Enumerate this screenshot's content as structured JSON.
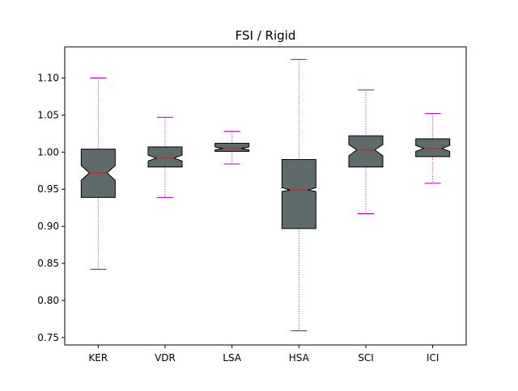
{
  "chart_data": {
    "type": "boxplot",
    "title": "FSI / Rigid",
    "xlabel": "",
    "ylabel": "",
    "ylim": [
      0.74,
      1.142
    ],
    "yticks": [
      "0.75",
      "0.80",
      "0.85",
      "0.90",
      "0.95",
      "1.00",
      "1.05",
      "1.10"
    ],
    "notched": true,
    "grid": false,
    "colors": {
      "box_fill": "#5f6b6a",
      "box_edge": "#000000",
      "median": "#dd2222",
      "whisker": "#aa00aa"
    },
    "categories": [
      "KER",
      "VDR",
      "LSA",
      "HSA",
      "SCI",
      "ICI"
    ],
    "boxes": [
      {
        "label": "KER",
        "whisker_low": 0.842,
        "q1": 0.939,
        "median": 0.972,
        "q3": 1.004,
        "whisker_high": 1.1,
        "notch_low": 0.962,
        "notch_high": 0.982
      },
      {
        "label": "VDR",
        "whisker_low": 0.939,
        "q1": 0.98,
        "median": 0.992,
        "q3": 1.007,
        "whisker_high": 1.047,
        "notch_low": 0.988,
        "notch_high": 0.996
      },
      {
        "label": "LSA",
        "whisker_low": 0.984,
        "q1": 1.001,
        "median": 1.005,
        "q3": 1.012,
        "whisker_high": 1.028,
        "notch_low": 1.003,
        "notch_high": 1.007
      },
      {
        "label": "HSA",
        "whisker_low": 0.759,
        "q1": 0.897,
        "median": 0.949,
        "q3": 0.99,
        "whisker_high": 1.125,
        "notch_low": 0.947,
        "notch_high": 0.952
      },
      {
        "label": "SCI",
        "whisker_low": 0.917,
        "q1": 0.98,
        "median": 1.003,
        "q3": 1.022,
        "whisker_high": 1.084,
        "notch_low": 0.995,
        "notch_high": 1.01
      },
      {
        "label": "ICI",
        "whisker_low": 0.958,
        "q1": 0.994,
        "median": 1.005,
        "q3": 1.018,
        "whisker_high": 1.052,
        "notch_low": 1.001,
        "notch_high": 1.009
      }
    ]
  }
}
